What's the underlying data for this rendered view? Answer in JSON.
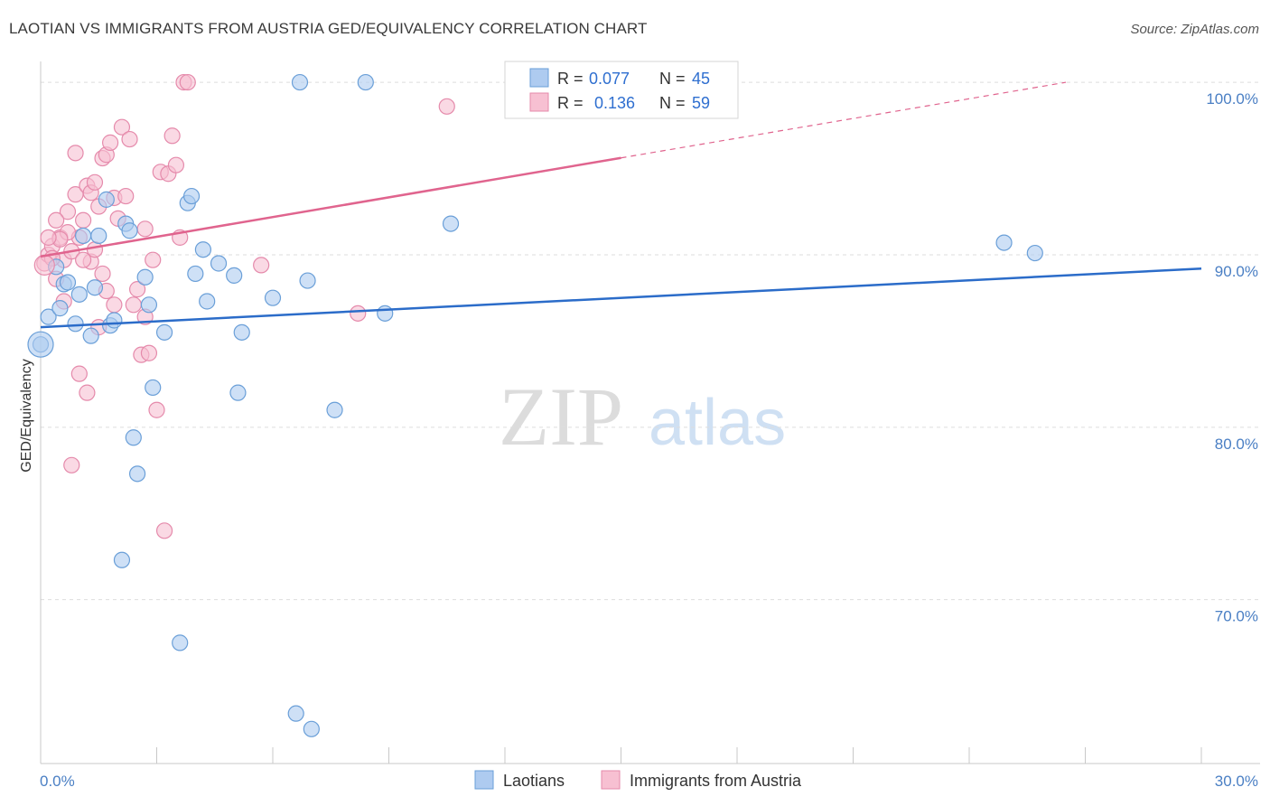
{
  "title": "LAOTIAN VS IMMIGRANTS FROM AUSTRIA GED/EQUIVALENCY CORRELATION CHART",
  "source": "Source: ZipAtlas.com",
  "watermark": {
    "zip": "ZIP",
    "atlas": "atlas"
  },
  "colors": {
    "laotians_fill": "#aecbf0",
    "laotians_stroke": "#6a9fd8",
    "laotians_line": "#2b6cc9",
    "austria_fill": "#f7c0d2",
    "austria_stroke": "#e58aab",
    "austria_line": "#e0648e",
    "grid": "#dddddd",
    "axis_text": "#4a7fc4"
  },
  "legend": {
    "rows": [
      {
        "r_label": "R =",
        "r_value": "0.077",
        "n_label": "N =",
        "n_value": "45"
      },
      {
        "r_label": "R =",
        "r_value": "0.136",
        "n_label": "N =",
        "n_value": "59"
      }
    ]
  },
  "bottom_legend": [
    "Laotians",
    "Immigrants from Austria"
  ],
  "chart_data": {
    "type": "scatter",
    "title": "LAOTIAN VS IMMIGRANTS FROM AUSTRIA GED/EQUIVALENCY CORRELATION CHART",
    "xlabel": "",
    "ylabel": "GED/Equivalency",
    "xlim": [
      0,
      30
    ],
    "ylim": [
      60.5,
      101
    ],
    "x_tick_labels": [
      "0.0%",
      "30.0%"
    ],
    "y_ticks": [
      70,
      80,
      90,
      100
    ],
    "y_tick_labels": [
      "70.0%",
      "80.0%",
      "90.0%",
      "100.0%"
    ],
    "series": [
      {
        "name": "Laotians",
        "r": 0.077,
        "n": 45,
        "trend": {
          "x0": 0,
          "y0": 85.8,
          "x1": 30,
          "y1": 89.2,
          "solid_to": 30
        },
        "points": [
          [
            0.2,
            86.4
          ],
          [
            0.0,
            84.8
          ],
          [
            0.4,
            89.3
          ],
          [
            0.5,
            86.9
          ],
          [
            0.6,
            88.3
          ],
          [
            0.7,
            88.4
          ],
          [
            0.9,
            86.0
          ],
          [
            1.0,
            87.7
          ],
          [
            1.1,
            91.1
          ],
          [
            1.3,
            85.3
          ],
          [
            1.4,
            88.1
          ],
          [
            1.5,
            91.1
          ],
          [
            1.7,
            93.2
          ],
          [
            1.8,
            85.9
          ],
          [
            1.9,
            86.2
          ],
          [
            2.1,
            72.3
          ],
          [
            2.2,
            91.8
          ],
          [
            2.3,
            91.4
          ],
          [
            2.4,
            79.4
          ],
          [
            2.5,
            77.3
          ],
          [
            2.7,
            88.7
          ],
          [
            2.8,
            87.1
          ],
          [
            2.9,
            82.3
          ],
          [
            3.2,
            85.5
          ],
          [
            3.6,
            67.5
          ],
          [
            3.8,
            93.0
          ],
          [
            3.9,
            93.4
          ],
          [
            4.0,
            88.9
          ],
          [
            4.2,
            90.3
          ],
          [
            4.3,
            87.3
          ],
          [
            4.6,
            89.5
          ],
          [
            5.0,
            88.8
          ],
          [
            5.1,
            82.0
          ],
          [
            5.2,
            85.5
          ],
          [
            6.0,
            87.5
          ],
          [
            6.6,
            63.4
          ],
          [
            6.7,
            100.0
          ],
          [
            6.9,
            88.5
          ],
          [
            7.0,
            62.5
          ],
          [
            7.6,
            81.0
          ],
          [
            8.4,
            100.0
          ],
          [
            8.9,
            86.6
          ],
          [
            10.6,
            91.8
          ],
          [
            24.9,
            90.7
          ],
          [
            25.7,
            90.1
          ]
        ]
      },
      {
        "name": "Immigrants from Austria",
        "r": 0.136,
        "n": 59,
        "trend": {
          "x0": 0,
          "y0": 89.9,
          "x1": 26.5,
          "y1": 100.0,
          "solid_to": 15.0
        },
        "points": [
          [
            0.1,
            89.5
          ],
          [
            0.2,
            90.0
          ],
          [
            0.3,
            90.5
          ],
          [
            0.4,
            88.6
          ],
          [
            0.5,
            91.0
          ],
          [
            0.6,
            89.7
          ],
          [
            0.7,
            92.5
          ],
          [
            0.8,
            90.2
          ],
          [
            0.9,
            93.5
          ],
          [
            1.0,
            91.0
          ],
          [
            1.1,
            92.0
          ],
          [
            1.2,
            94.0
          ],
          [
            1.3,
            89.6
          ],
          [
            1.4,
            90.3
          ],
          [
            1.5,
            92.8
          ],
          [
            1.6,
            95.6
          ],
          [
            1.7,
            95.8
          ],
          [
            1.8,
            96.5
          ],
          [
            1.9,
            93.3
          ],
          [
            2.0,
            92.1
          ],
          [
            2.1,
            97.4
          ],
          [
            2.2,
            93.4
          ],
          [
            2.3,
            96.7
          ],
          [
            2.4,
            87.1
          ],
          [
            2.5,
            88.0
          ],
          [
            2.6,
            84.2
          ],
          [
            2.7,
            86.4
          ],
          [
            2.8,
            84.3
          ],
          [
            2.9,
            89.7
          ],
          [
            3.0,
            81.0
          ],
          [
            3.1,
            94.8
          ],
          [
            3.2,
            74.0
          ],
          [
            3.3,
            94.7
          ],
          [
            3.5,
            95.2
          ],
          [
            3.6,
            91.0
          ],
          [
            3.7,
            100.0
          ],
          [
            3.8,
            100.0
          ],
          [
            0.8,
            77.8
          ],
          [
            1.0,
            83.1
          ],
          [
            1.2,
            82.0
          ],
          [
            0.4,
            92.0
          ],
          [
            0.6,
            87.3
          ],
          [
            0.9,
            95.9
          ],
          [
            1.1,
            89.7
          ],
          [
            1.3,
            93.6
          ],
          [
            1.5,
            85.8
          ],
          [
            1.7,
            87.9
          ],
          [
            1.9,
            87.1
          ],
          [
            0.3,
            89.8
          ],
          [
            0.7,
            91.3
          ],
          [
            5.7,
            89.4
          ],
          [
            8.2,
            86.6
          ],
          [
            10.5,
            98.6
          ],
          [
            0.5,
            90.9
          ],
          [
            1.6,
            88.9
          ],
          [
            2.7,
            91.5
          ],
          [
            0.2,
            91.0
          ],
          [
            1.4,
            94.2
          ],
          [
            3.4,
            96.9
          ]
        ]
      }
    ]
  }
}
